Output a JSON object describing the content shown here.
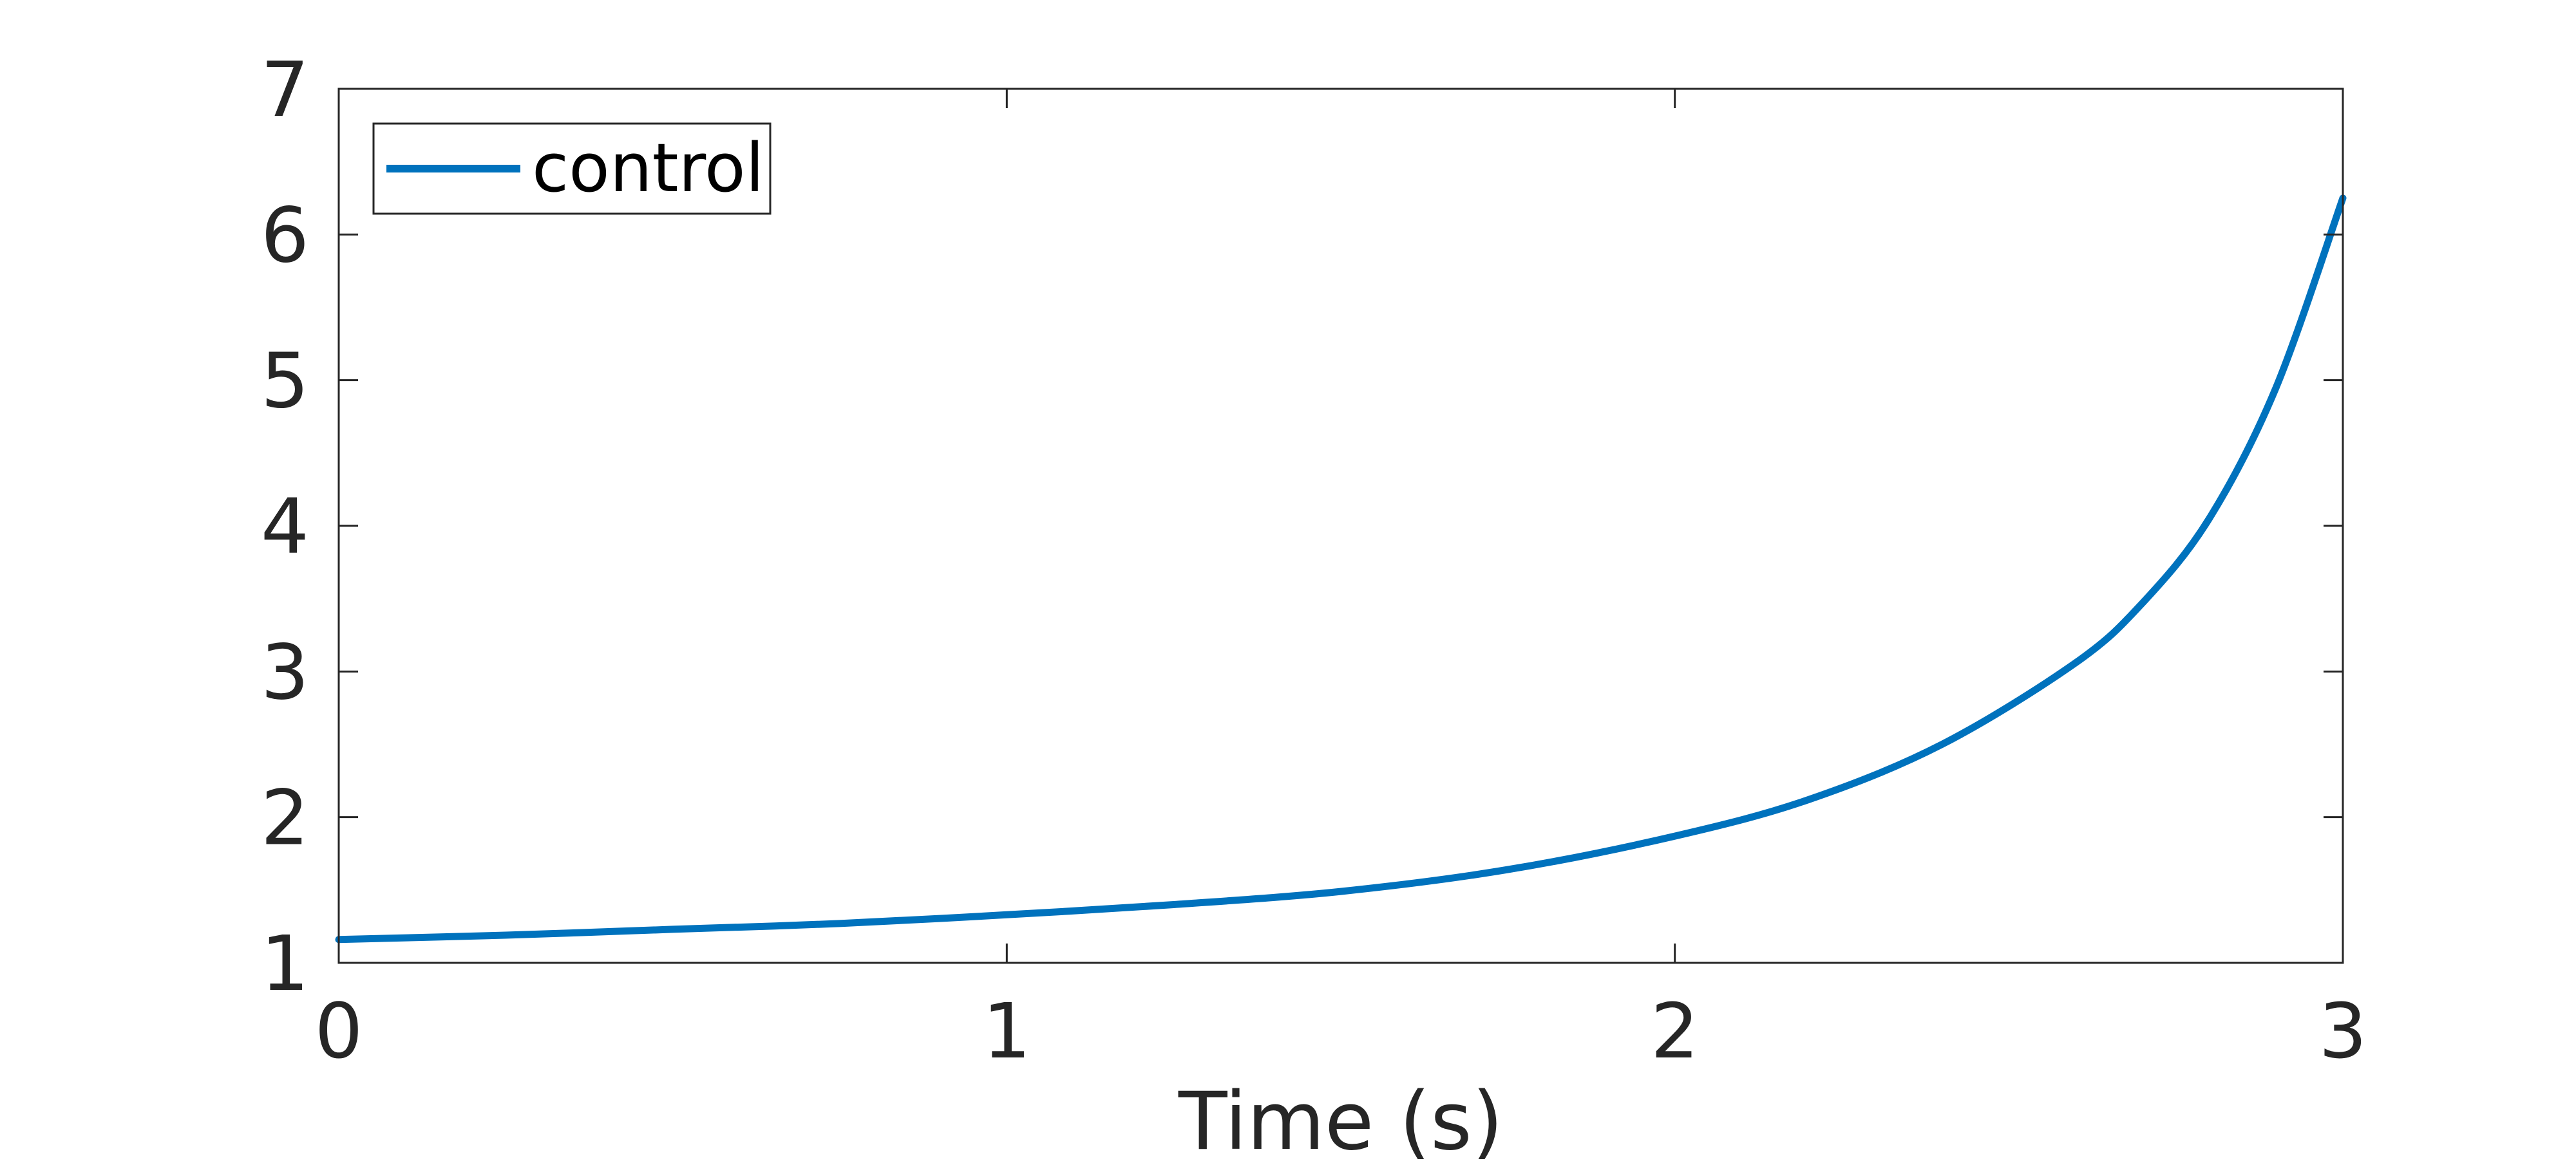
{
  "chart_data": {
    "type": "line",
    "title": "",
    "xlabel": "Time (s)",
    "ylabel": "",
    "xlim": [
      0,
      3
    ],
    "ylim": [
      1,
      7
    ],
    "xticks": [
      0,
      1,
      2,
      3
    ],
    "yticks": [
      1,
      2,
      3,
      4,
      5,
      6,
      7
    ],
    "xtick_labels": [
      "0",
      "1",
      "2",
      "3"
    ],
    "ytick_labels": [
      "1",
      "2",
      "3",
      "4",
      "5",
      "6",
      "7"
    ],
    "grid": false,
    "legend": {
      "placement": "top-left",
      "entries": [
        "control"
      ]
    },
    "series": [
      {
        "name": "control",
        "color": "#0072BD",
        "x": [
          0,
          0.25,
          0.5,
          0.75,
          1.0,
          1.25,
          1.5,
          1.75,
          2.0,
          2.2,
          2.4,
          2.6,
          2.7,
          2.8,
          2.9,
          3.0
        ],
        "y": [
          1.16,
          1.19,
          1.23,
          1.27,
          1.33,
          1.4,
          1.49,
          1.64,
          1.87,
          2.12,
          2.5,
          3.06,
          3.47,
          4.05,
          4.95,
          6.25
        ]
      }
    ]
  }
}
